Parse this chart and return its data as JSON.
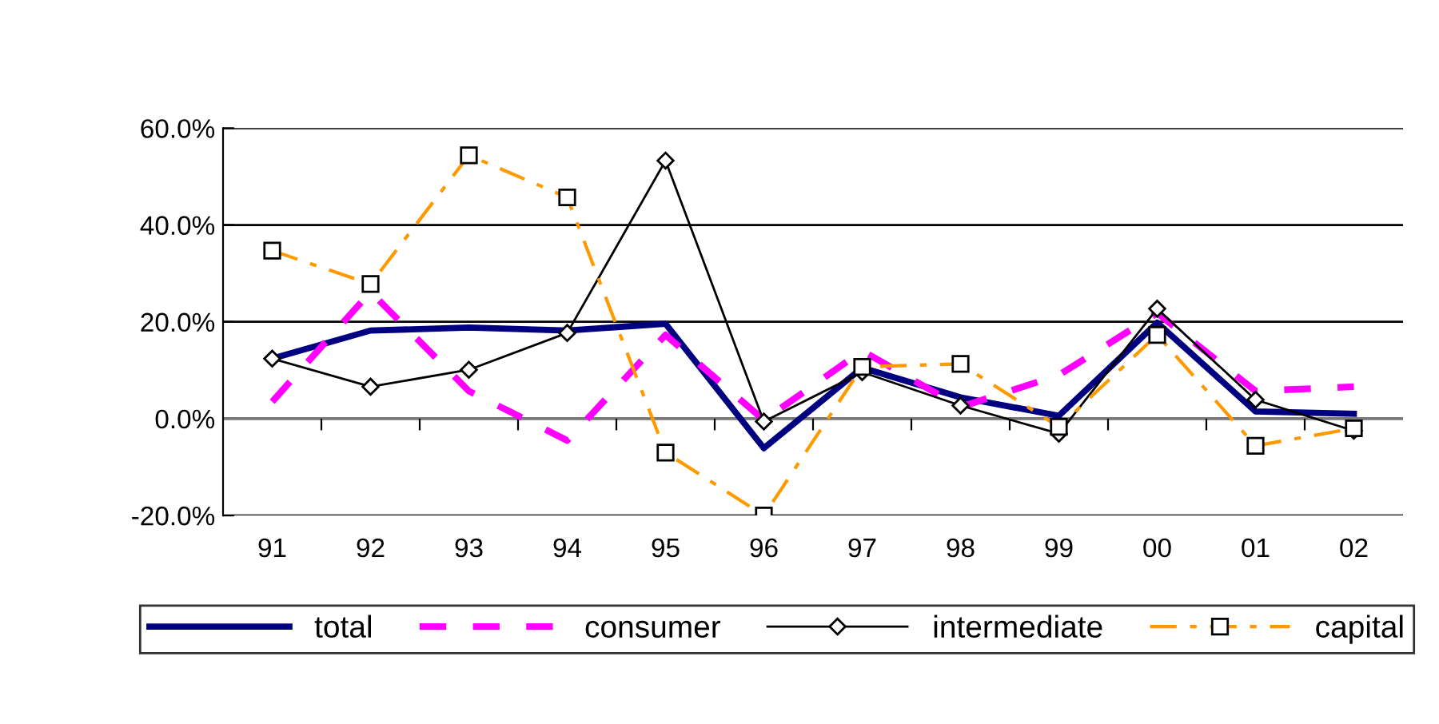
{
  "chart_data": {
    "type": "line",
    "categories": [
      "91",
      "92",
      "93",
      "94",
      "95",
      "96",
      "97",
      "98",
      "99",
      "00",
      "01",
      "02"
    ],
    "series": [
      {
        "name": "total",
        "color": "#000080",
        "line_style": "solid",
        "marker": "none",
        "values": [
          12.4,
          18.2,
          18.8,
          18.2,
          19.6,
          -6.1,
          10.5,
          4.4,
          0.6,
          19.8,
          1.5,
          1.0
        ]
      },
      {
        "name": "consumer",
        "color": "#ff00ff",
        "line_style": "dashed",
        "marker": "none",
        "values": [
          3.5,
          26.2,
          5.7,
          -4.5,
          17.3,
          -0.3,
          14,
          2.4,
          9,
          21.8,
          5.7,
          6.6
        ]
      },
      {
        "name": "intermediate",
        "color": "#000000",
        "line_style": "solid",
        "marker": "diamond",
        "values": [
          12.4,
          6.6,
          10.1,
          17.7,
          53.3,
          -0.6,
          9.6,
          2.7,
          -3.1,
          22.7,
          3.9,
          -2.5
        ]
      },
      {
        "name": "capital",
        "color": "#ff9900",
        "line_style": "dashdot",
        "marker": "square",
        "values": [
          34.7,
          27.8,
          54.4,
          45.7,
          -7.0,
          -20,
          10.7,
          11.3,
          -1.7,
          17.3,
          -5.6,
          -2.0
        ]
      }
    ],
    "ylim": [
      -20,
      60
    ],
    "yticks": [
      {
        "value": -20,
        "label": "-20.0%"
      },
      {
        "value": 0,
        "label": "0.0%"
      },
      {
        "value": 20,
        "label": "20.0%"
      },
      {
        "value": 40,
        "label": "40.0%"
      },
      {
        "value": 60,
        "label": "60.0%"
      }
    ],
    "grid": "y",
    "legend": "bottom"
  }
}
